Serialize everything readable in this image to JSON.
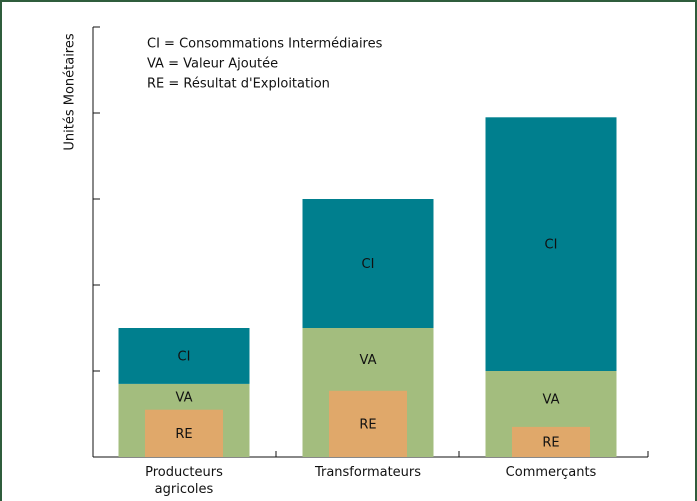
{
  "chart_data": {
    "type": "bar",
    "y_label": "Unités Monétaires",
    "annotations": [
      "CI  = Consommations Intermédiaires",
      "VA = Valeur Ajoutée",
      "RE = Résultat d'Exploitation"
    ],
    "categories": [
      "Producteurs agricoles",
      "Transformateurs",
      "Commerçants"
    ],
    "series": [
      {
        "name": "VA",
        "color": "#a3bd7e",
        "values": [
          0.85,
          1.5,
          1.0
        ]
      },
      {
        "name": "CI",
        "color": "#007f8e",
        "values": [
          0.65,
          1.5,
          2.95
        ]
      },
      {
        "name": "RE",
        "color": "#e0a86a",
        "values": [
          0.55,
          0.77,
          0.35
        ]
      }
    ],
    "stacked": [
      "VA",
      "CI"
    ],
    "overlay": "RE",
    "ylim": [
      0,
      5
    ],
    "yticks": [
      1,
      2,
      3,
      4,
      5
    ]
  }
}
